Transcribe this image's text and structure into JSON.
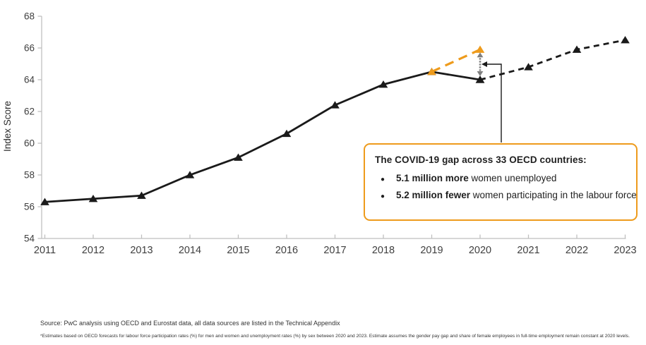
{
  "chart_data": {
    "type": "line",
    "title": "",
    "xlabel": "",
    "ylabel": "Index Score",
    "ylim": [
      54,
      68
    ],
    "ytick_step": 2,
    "xticks": [
      2011,
      2012,
      2013,
      2014,
      2015,
      2016,
      2017,
      2018,
      2019,
      2020,
      2021,
      2022,
      2023
    ],
    "grid": false,
    "legend": "none",
    "series": [
      {
        "name": "actual-index",
        "color": "#1a1a1a",
        "style": "solid",
        "width": 2.8,
        "dash": "",
        "x": [
          2011,
          2012,
          2013,
          2014,
          2015,
          2016,
          2017,
          2018,
          2019,
          2020
        ],
        "values": [
          56.3,
          56.5,
          56.7,
          58.0,
          59.1,
          60.6,
          62.4,
          63.7,
          64.5,
          64.0
        ]
      },
      {
        "name": "forecast-index",
        "color": "#1a1a1a",
        "style": "dashed",
        "width": 2.8,
        "dash": "8,6",
        "x": [
          2020,
          2021,
          2022,
          2023
        ],
        "values": [
          64.0,
          64.8,
          65.9,
          66.5
        ]
      },
      {
        "name": "pre-covid-counterfactual",
        "color": "#EE9B1C",
        "style": "dashed",
        "width": 3.2,
        "dash": "13,8",
        "x": [
          2019,
          2020
        ],
        "values": [
          64.5,
          65.9
        ]
      }
    ],
    "gap_annotation": {
      "x": 2020,
      "top_value": 65.9,
      "bottom_value": 64.0,
      "arrow_color": "#7F7F7F"
    },
    "axis_color": "#BFBFBF",
    "label_color": "#3F3F3F"
  },
  "callout": {
    "border_color": "#EE9B1C",
    "title": "The COVID-19 gap across 33 OECD countries:",
    "bullets": [
      {
        "bold": "5.1 million more",
        "rest": " women unemployed"
      },
      {
        "bold": "5.2 million fewer",
        "rest": " women participating in the labour force"
      }
    ]
  },
  "footer": {
    "source": "Source: PwC analysis using OECD and Eurostat data, all data sources are listed in the Technical Appendix",
    "footnote": "*Estimates based on OECD forecasts for labour force participation rates (%) for men and women and unemployment rates (%) by sex between 2020 and 2023. Estimate assumes the gender pay gap and share of female employees in full-time employment remain constant at 2020 levels."
  }
}
